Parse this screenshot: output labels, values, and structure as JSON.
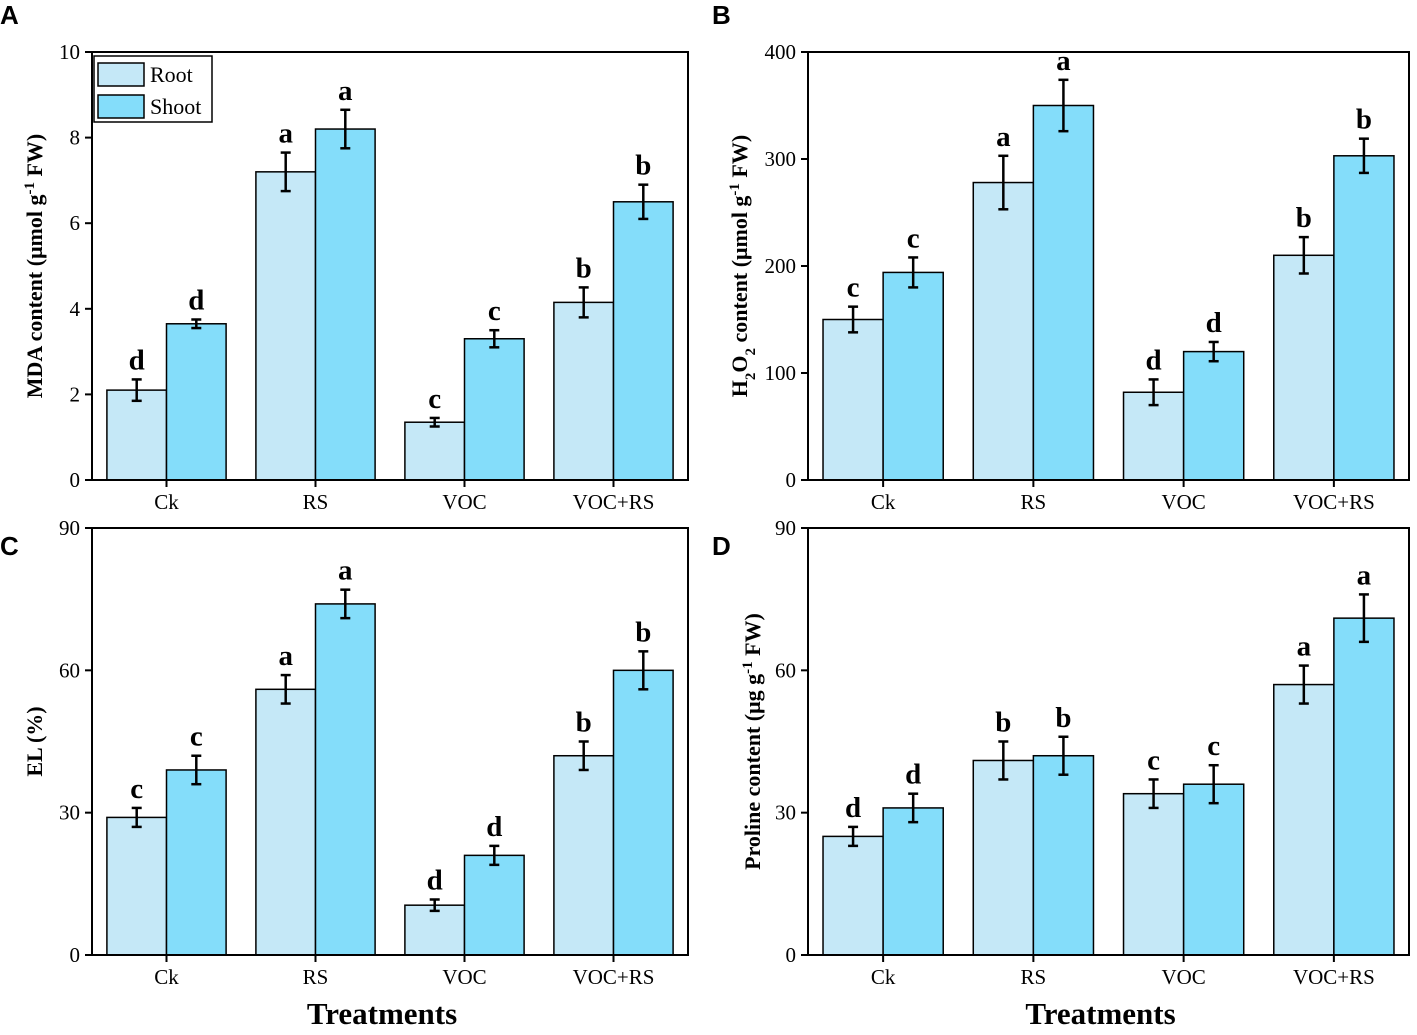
{
  "figure": {
    "xtitle": "Treatments",
    "series_names": [
      "Root",
      "Shoot"
    ],
    "colors": {
      "root": "#c5e8f7",
      "shoot": "#84ddfa",
      "outline": "#000000"
    }
  },
  "chart_data": [
    {
      "panel": "A",
      "type": "bar",
      "categories": [
        "Ck",
        "RS",
        "VOC",
        "VOC+RS"
      ],
      "ylabel": {
        "main": "MDA content (μmol g",
        "sup": "-1",
        "post": " FW)"
      },
      "ylim": [
        0,
        10
      ],
      "yticks": [
        0,
        2,
        4,
        6,
        8,
        10
      ],
      "legend": "top-left",
      "series": [
        {
          "name": "Root",
          "values": [
            2.1,
            7.2,
            1.35,
            4.15
          ],
          "errors": [
            0.25,
            0.45,
            0.1,
            0.35
          ],
          "letters": [
            "d",
            "a",
            "c",
            "b"
          ]
        },
        {
          "name": "Shoot",
          "values": [
            3.65,
            8.2,
            3.3,
            6.5
          ],
          "errors": [
            0.1,
            0.45,
            0.2,
            0.4
          ],
          "letters": [
            "d",
            "a",
            "c",
            "b"
          ]
        }
      ]
    },
    {
      "panel": "B",
      "type": "bar",
      "categories": [
        "Ck",
        "RS",
        "VOC",
        "VOC+RS"
      ],
      "ylabel": {
        "pre": "H",
        "sub1": "2",
        "mid": "O",
        "sub2": "2",
        "main": " content (μmol g",
        "sup": "-1",
        "post": " FW)"
      },
      "ylim": [
        0,
        400
      ],
      "yticks": [
        0,
        100,
        200,
        300,
        400
      ],
      "series": [
        {
          "name": "Root",
          "values": [
            150,
            278,
            82,
            210
          ],
          "errors": [
            12,
            25,
            12,
            17
          ],
          "letters": [
            "c",
            "a",
            "d",
            "b"
          ]
        },
        {
          "name": "Shoot",
          "values": [
            194,
            350,
            120,
            303
          ],
          "errors": [
            14,
            24,
            9,
            16
          ],
          "letters": [
            "c",
            "a",
            "d",
            "b"
          ]
        }
      ]
    },
    {
      "panel": "C",
      "type": "bar",
      "categories": [
        "Ck",
        "RS",
        "VOC",
        "VOC+RS"
      ],
      "ylabel": {
        "main": "EL (%)"
      },
      "ylim": [
        0,
        90
      ],
      "yticks": [
        0,
        30,
        60,
        90
      ],
      "series": [
        {
          "name": "Root",
          "values": [
            29,
            56,
            10.5,
            42
          ],
          "errors": [
            2,
            3,
            1.2,
            3
          ],
          "letters": [
            "c",
            "a",
            "d",
            "b"
          ]
        },
        {
          "name": "Shoot",
          "values": [
            39,
            74,
            21,
            60
          ],
          "errors": [
            3,
            3,
            2,
            4
          ],
          "letters": [
            "c",
            "a",
            "d",
            "b"
          ]
        }
      ]
    },
    {
      "panel": "D",
      "type": "bar",
      "categories": [
        "Ck",
        "RS",
        "VOC",
        "VOC+RS"
      ],
      "ylabel": {
        "main": "Proline content (μg g",
        "sup": "-1",
        "post": " FW)"
      },
      "ylim": [
        0,
        90
      ],
      "yticks": [
        0,
        30,
        60,
        90
      ],
      "series": [
        {
          "name": "Root",
          "values": [
            25,
            41,
            34,
            57
          ],
          "errors": [
            2,
            4,
            3,
            4
          ],
          "letters": [
            "d",
            "b",
            "c",
            "a"
          ]
        },
        {
          "name": "Shoot",
          "values": [
            31,
            42,
            36,
            71
          ],
          "errors": [
            3,
            4,
            4,
            5
          ],
          "letters": [
            "d",
            "b",
            "c",
            "a"
          ]
        }
      ]
    }
  ]
}
